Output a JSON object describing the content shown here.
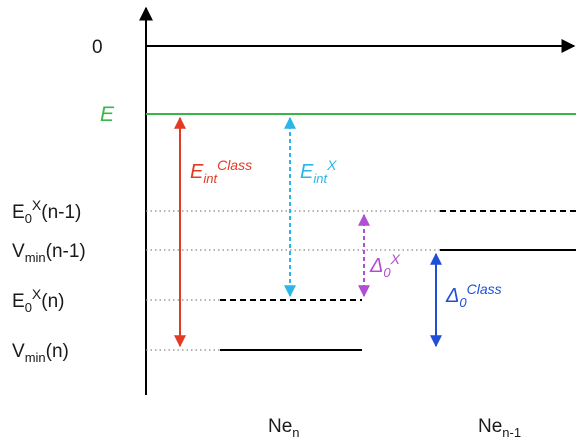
{
  "colors": {
    "axis": "#000000",
    "energy_line": "#3cb54a",
    "e_int_class": "#e23a24",
    "e_int_x": "#2bb5e8",
    "delta_x": "#b04fd1",
    "delta_class": "#1f4fd6",
    "dotted_guides": "#888888"
  },
  "labels": {
    "zero": "0",
    "energy": "E",
    "e0x_n_minus_1": {
      "base": "E",
      "sub": "0",
      "sup": "X",
      "tail": "(n-1)"
    },
    "vmin_n_minus_1": {
      "base": "V",
      "sub": "min",
      "tail": "(n-1)"
    },
    "e0x_n": {
      "base": "E",
      "sub": "0",
      "sup": "X",
      "tail": "(n)"
    },
    "vmin_n": {
      "base": "V",
      "sub": "min",
      "tail": "(n)"
    }
  },
  "arrows": {
    "e_int_class": {
      "base": "E",
      "sub": "int",
      "sup": "Class"
    },
    "e_int_x": {
      "base": "E",
      "sub": "int",
      "sup": "X"
    },
    "delta_x": {
      "base": "Δ",
      "sub": "0",
      "sup": "X"
    },
    "delta_class": {
      "base": "Δ",
      "sub": "0",
      "sup": "Class"
    }
  },
  "columns": {
    "ne_n": {
      "base": "Ne",
      "sub": "n"
    },
    "ne_n_minus_1": {
      "base": "Ne",
      "sub": "n-1"
    }
  }
}
